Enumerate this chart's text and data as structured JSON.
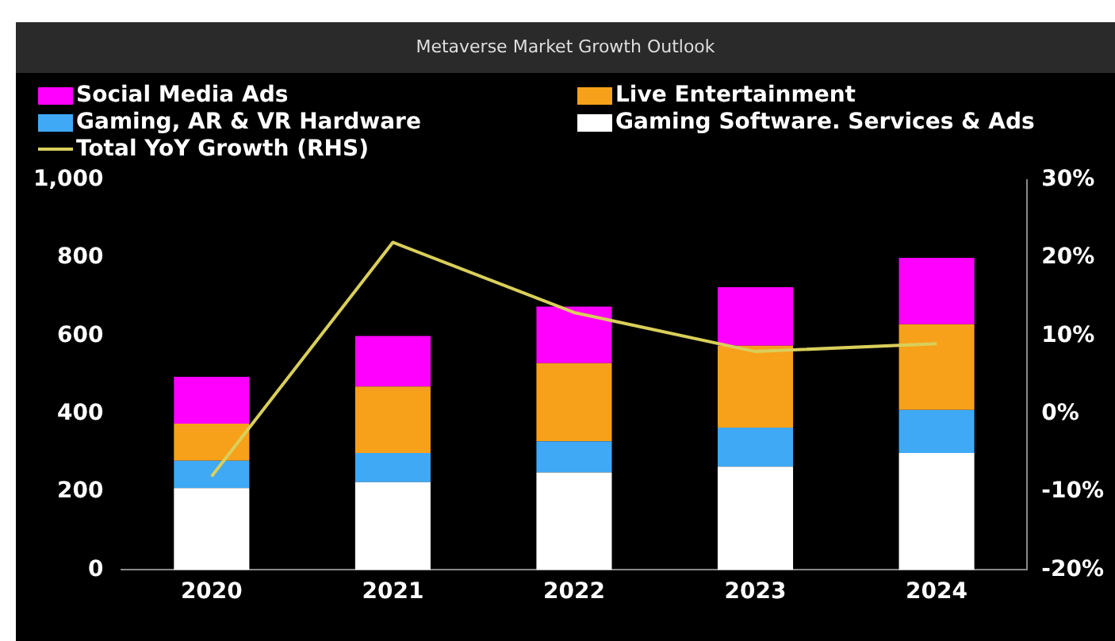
{
  "chart_data": {
    "type": "bar",
    "title": "Metaverse Market Growth Outlook",
    "stacked": true,
    "legend": "top",
    "grid": false,
    "categories": [
      "2020",
      "2021",
      "2022",
      "2023",
      "2024"
    ],
    "series": [
      {
        "name": "Gaming Software. Services & Ads",
        "color": "#ffffff",
        "values": [
          210,
          225,
          250,
          265,
          300
        ]
      },
      {
        "name": "Gaming, AR & VR Hardware",
        "color": "#3fa9f5",
        "values": [
          70,
          75,
          80,
          100,
          110
        ]
      },
      {
        "name": "Live Entertainment",
        "color": "#f7a11a",
        "values": [
          95,
          170,
          200,
          210,
          220
        ]
      },
      {
        "name": "Social Media Ads",
        "color": "#ff00ff",
        "values": [
          120,
          130,
          145,
          150,
          170
        ]
      },
      {
        "name": "Total YoY Growth (RHS)",
        "type": "line",
        "axis": "y2",
        "color": "#d9cf5a",
        "values": [
          -8,
          22,
          13,
          8,
          9
        ]
      }
    ],
    "ylim": [
      0,
      1000
    ],
    "yticks": [
      0,
      200,
      400,
      600,
      800,
      {
        "value": 1000,
        "label": "1,000"
      }
    ],
    "y2lim": [
      -20,
      30
    ],
    "y2ticks": [
      {
        "value": -20,
        "label": "-20%"
      },
      {
        "value": -10,
        "label": "-10%"
      },
      {
        "value": 0,
        "label": "0%"
      },
      {
        "value": 10,
        "label": "10%"
      },
      {
        "value": 20,
        "label": "20%"
      },
      {
        "value": 30,
        "label": "30%"
      }
    ]
  }
}
